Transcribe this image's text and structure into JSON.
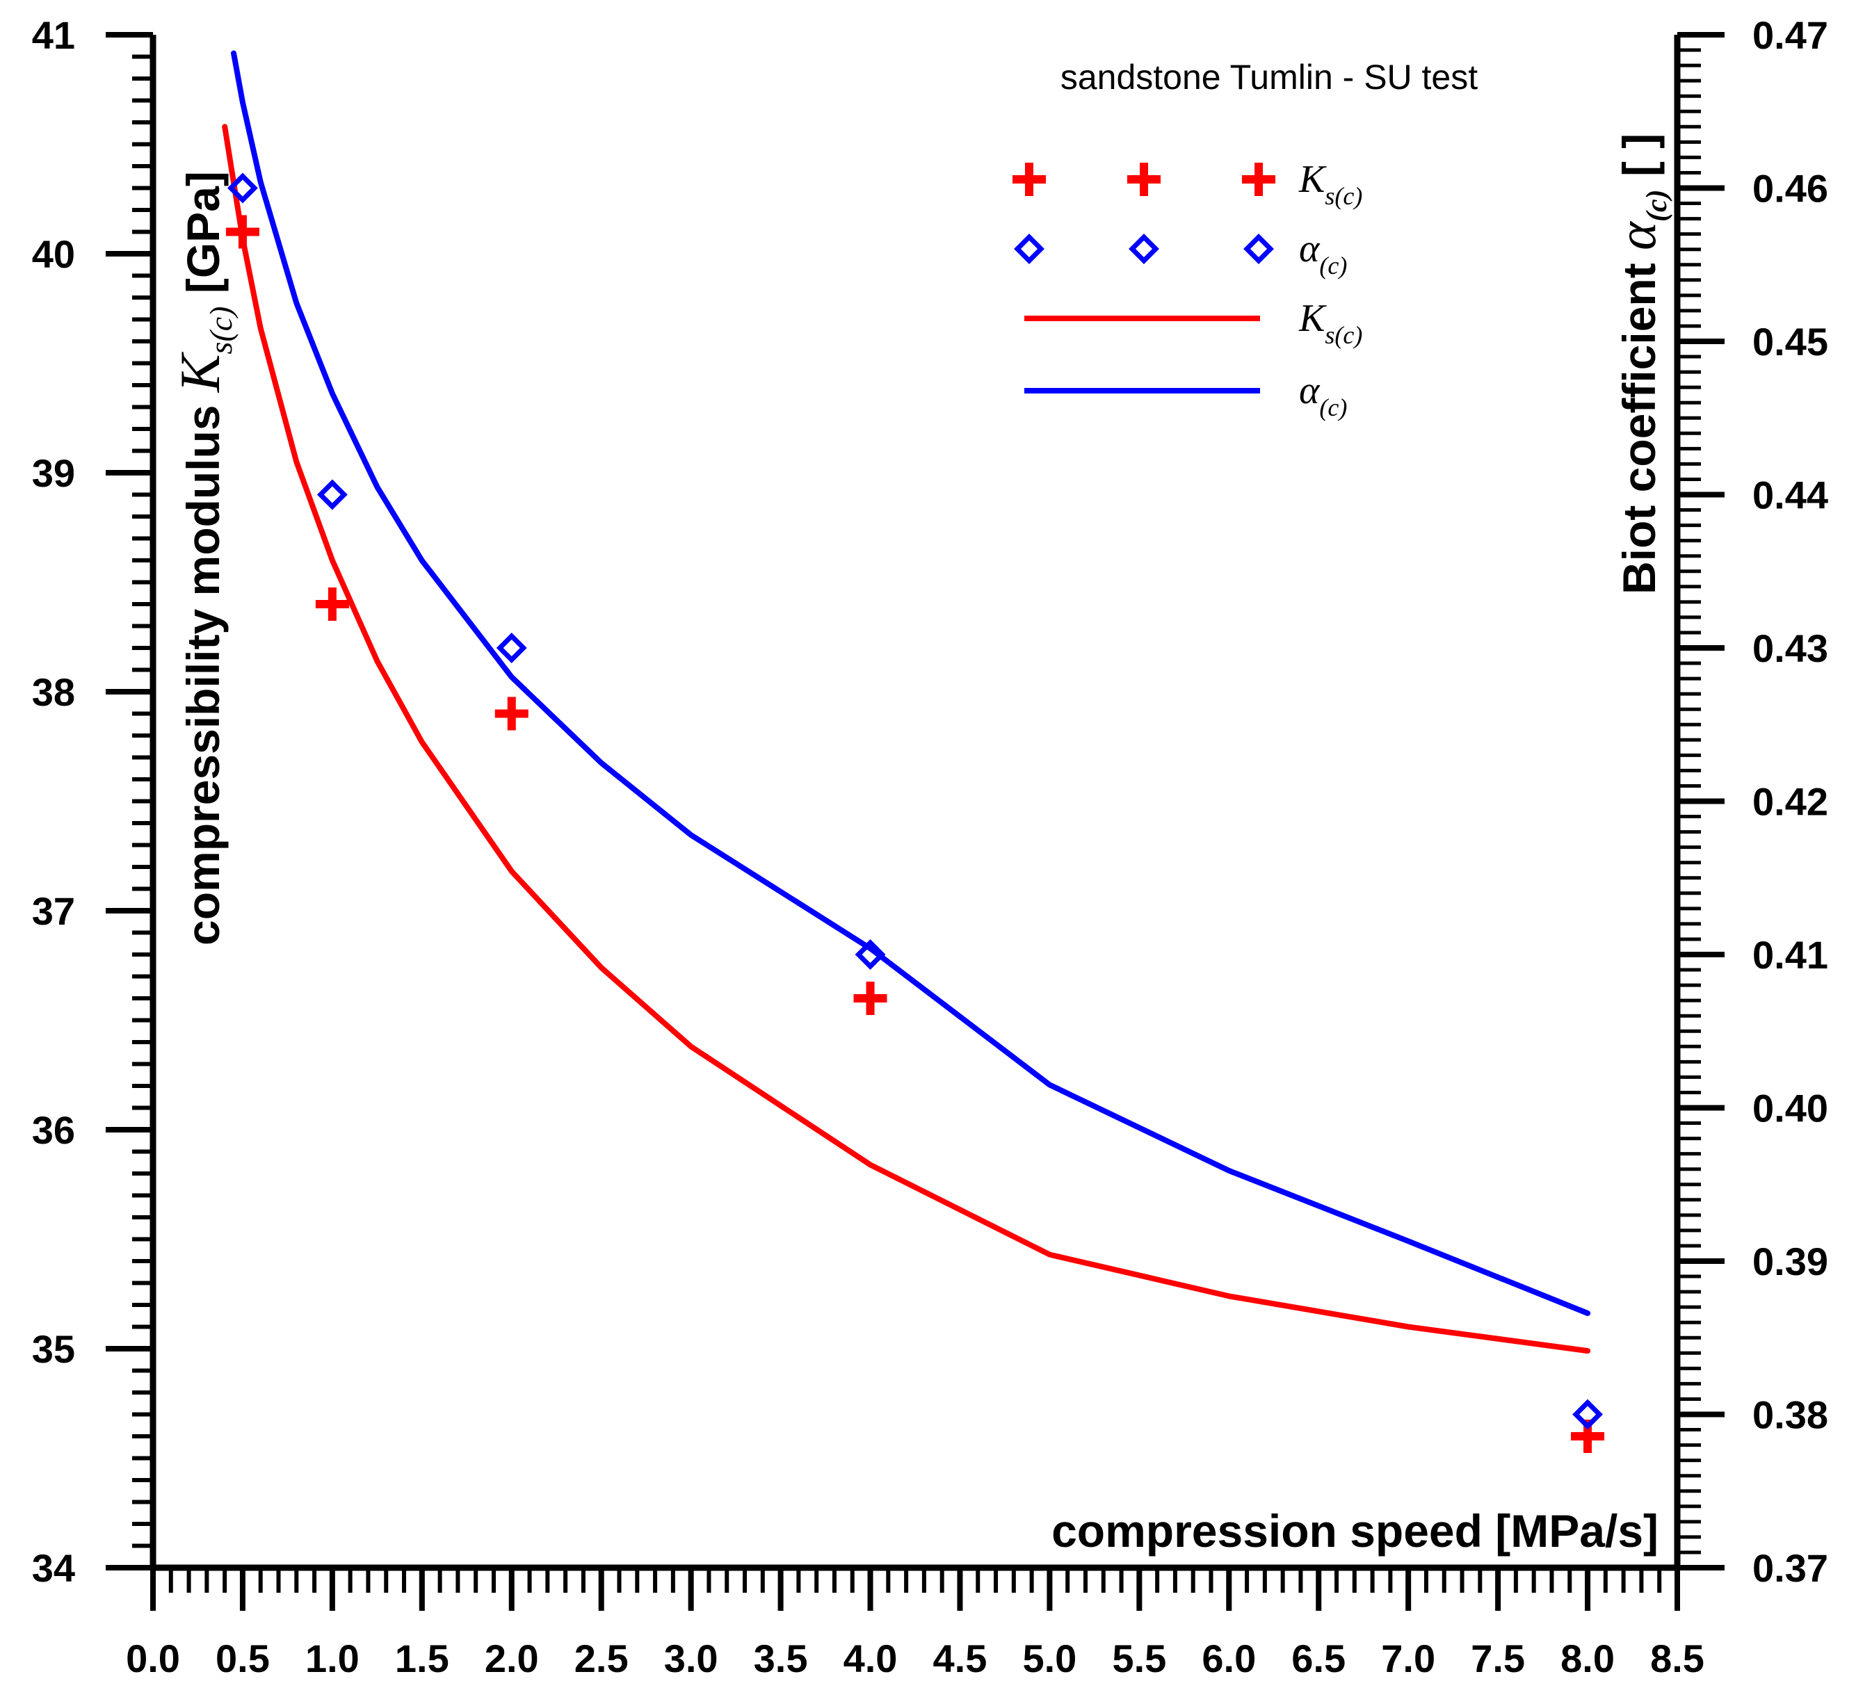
{
  "chart_data": {
    "type": "scatter",
    "title": "sandstone Tumlin - SU test",
    "xlabel": "compression speed [MPa/s]",
    "ylabel": {
      "text": "compressibility modulus ",
      "symbol": "K",
      "sub": "s(c)",
      "unit": " [GPa]"
    },
    "y2label": {
      "text": "Biot coefficient ",
      "symbol": "α",
      "sub": "(c)",
      "unit": " [ ]"
    },
    "xlim": [
      0.0,
      8.5
    ],
    "ylim": [
      34,
      41
    ],
    "y2lim": [
      0.37,
      0.47
    ],
    "x_ticks": [
      "0.0",
      "0.5",
      "1.0",
      "1.5",
      "2.0",
      "2.5",
      "3.0",
      "3.5",
      "4.0",
      "4.5",
      "5.0",
      "5.5",
      "6.0",
      "6.5",
      "7.0",
      "7.5",
      "8.0",
      "8.5"
    ],
    "y_ticks": [
      "34",
      "35",
      "36",
      "37",
      "38",
      "39",
      "40",
      "41"
    ],
    "y2_ticks": [
      "0.37",
      "0.38",
      "0.39",
      "0.40",
      "0.41",
      "0.42",
      "0.43",
      "0.44",
      "0.45",
      "0.46",
      "0.47"
    ],
    "series": [
      {
        "name": "Ks(c)",
        "kind": "points",
        "marker": "plus",
        "axis": "left",
        "color": "#ff0000",
        "x": [
          0.5,
          1.0,
          2.0,
          4.0,
          8.0
        ],
        "y": [
          40.1,
          38.4,
          37.9,
          36.6,
          34.6
        ]
      },
      {
        "name": "α(c)",
        "kind": "points",
        "marker": "diamond",
        "axis": "right",
        "color": "#0000ff",
        "x": [
          0.5,
          1.0,
          2.0,
          4.0,
          8.0
        ],
        "y": [
          0.46,
          0.44,
          0.43,
          0.41,
          0.38
        ]
      },
      {
        "name": "Ks(c)",
        "kind": "fit",
        "axis": "left",
        "color": "#ff0000",
        "x": [
          0.4,
          0.5,
          0.6,
          0.8,
          1.0,
          1.25,
          1.5,
          2.0,
          2.5,
          3.0,
          4.0,
          5.0,
          6.0,
          7.0,
          8.0
        ],
        "y": [
          40.58,
          40.07,
          39.66,
          39.05,
          38.6,
          38.14,
          37.77,
          37.18,
          36.74,
          36.38,
          35.84,
          35.43,
          35.24,
          35.1,
          34.99
        ]
      },
      {
        "name": "α(c)",
        "kind": "fit",
        "axis": "right",
        "color": "#0000ff",
        "x": [
          0.45,
          0.5,
          0.6,
          0.8,
          1.0,
          1.25,
          1.5,
          2.0,
          2.5,
          3.0,
          4.0,
          5.0,
          6.0,
          7.0,
          8.0
        ],
        "y": [
          0.4688,
          0.4656,
          0.4604,
          0.4525,
          0.4466,
          0.4405,
          0.4357,
          0.4281,
          0.4225,
          0.4178,
          0.4104,
          0.4015,
          0.3959,
          0.3913,
          0.3866
        ]
      }
    ],
    "legend": {
      "position": "top-right",
      "entries": [
        {
          "marker": "plus",
          "color": "#ff0000",
          "symbol": "K",
          "sub": "s(c)"
        },
        {
          "marker": "diamond",
          "color": "#0000ff",
          "symbol": "α",
          "sub": "(c)"
        },
        {
          "marker": "line",
          "color": "#ff0000",
          "symbol": "K",
          "sub": "s(c)"
        },
        {
          "marker": "line",
          "color": "#0000ff",
          "symbol": "α",
          "sub": "(c)"
        }
      ]
    }
  }
}
